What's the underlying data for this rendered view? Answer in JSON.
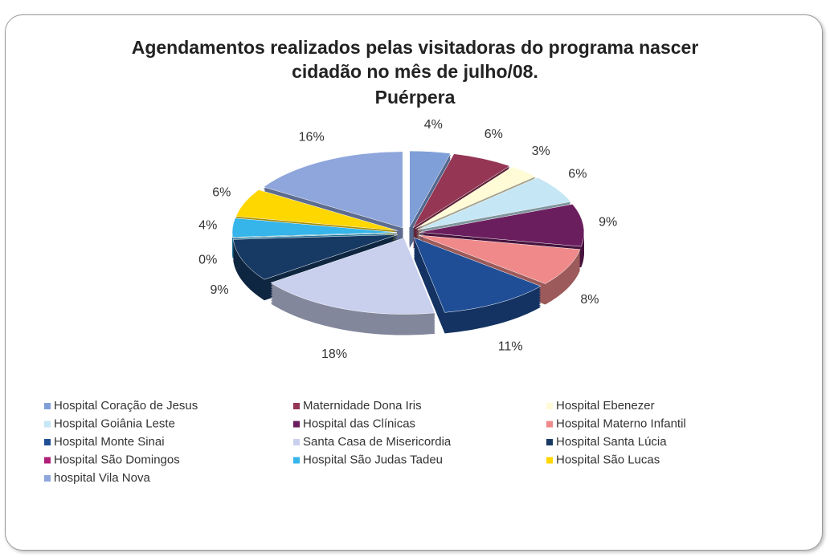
{
  "chart_data": {
    "type": "pie",
    "title": "Agendamentos realizados pelas visitadoras do programa nascer cidadão no mês de julho/08.",
    "subtitle": "Puérpera",
    "categories": [
      "Hospital Coração de Jesus",
      "Maternidade Dona Iris",
      "Hospital Ebenezer",
      "Hospital Goiânia Leste",
      "Hospital das Clínicas",
      "Hospital Materno Infantil",
      "Hospital Monte Sinai",
      "Santa Casa de Misericordia",
      "Hospital Santa Lúcia",
      "Hospital São Domingos",
      "Hospital São Judas Tadeu",
      "Hospital São Lucas",
      "hospital Vila Nova"
    ],
    "values": [
      4,
      6,
      3,
      6,
      9,
      8,
      11,
      18,
      9,
      0,
      4,
      6,
      16
    ],
    "value_labels": [
      "4%",
      "6%",
      "3%",
      "6%",
      "9%",
      "8%",
      "11%",
      "18%",
      "9%",
      "0%",
      "4%",
      "6%",
      "16%"
    ],
    "colors": [
      "#7f9fd9",
      "#943654",
      "#fffbd6",
      "#c5e6f5",
      "#6b1e5e",
      "#f08a8a",
      "#1f4e96",
      "#c9d0ee",
      "#173a64",
      "#b0207a",
      "#35b5ea",
      "#ffd700",
      "#8fa6dc"
    ],
    "legend": "bottom"
  }
}
